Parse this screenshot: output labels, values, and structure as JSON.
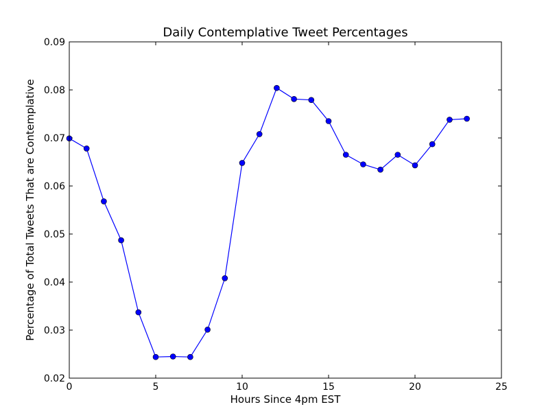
{
  "chart_data": {
    "type": "line",
    "title": "Daily Contemplative Tweet Percentages",
    "xlabel": "Hours Since 4pm EST",
    "ylabel": "Percentage of Total Tweets That are Contemplative",
    "xlim": [
      0,
      25
    ],
    "ylim": [
      0.02,
      0.09
    ],
    "xticks": [
      0,
      5,
      10,
      15,
      20,
      25
    ],
    "yticks": [
      0.02,
      0.03,
      0.04,
      0.05,
      0.06,
      0.07,
      0.08,
      0.09
    ],
    "xtick_labels": [
      "0",
      "5",
      "10",
      "15",
      "20",
      "25"
    ],
    "ytick_labels": [
      "0.02",
      "0.03",
      "0.04",
      "0.05",
      "0.06",
      "0.07",
      "0.08",
      "0.09"
    ],
    "grid": false,
    "series": [
      {
        "color": "#0000ff",
        "marker": "circle",
        "x": [
          0,
          1,
          2,
          3,
          4,
          5,
          6,
          7,
          8,
          9,
          10,
          11,
          12,
          13,
          14,
          15,
          16,
          17,
          18,
          19,
          20,
          21,
          22,
          23
        ],
        "y": [
          0.0699,
          0.0678,
          0.0568,
          0.0487,
          0.0337,
          0.0244,
          0.0245,
          0.0244,
          0.0301,
          0.0408,
          0.0648,
          0.0708,
          0.0804,
          0.0781,
          0.0779,
          0.0735,
          0.0665,
          0.0645,
          0.0634,
          0.0665,
          0.0643,
          0.0687,
          0.0738,
          0.074
        ]
      }
    ]
  }
}
